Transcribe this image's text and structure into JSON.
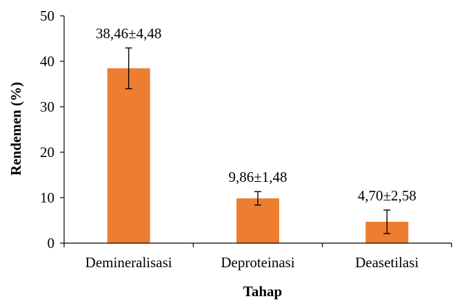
{
  "chart_data": {
    "type": "bar",
    "xlabel": "Tahap",
    "ylabel": "Rendemen (%)",
    "ylim": [
      0,
      50
    ],
    "yticks": [
      0,
      10,
      20,
      30,
      40,
      50
    ],
    "grid": false,
    "categories": [
      "Demineralisasi",
      "Deproteinasi",
      "Deasetilasi"
    ],
    "values": [
      38.46,
      9.86,
      4.7
    ],
    "errors": [
      4.48,
      1.48,
      2.58
    ],
    "data_labels": [
      "38,46±4,48",
      "9,86±1,48",
      "4,70±2,58"
    ],
    "bar_color": "#ED7D31"
  }
}
